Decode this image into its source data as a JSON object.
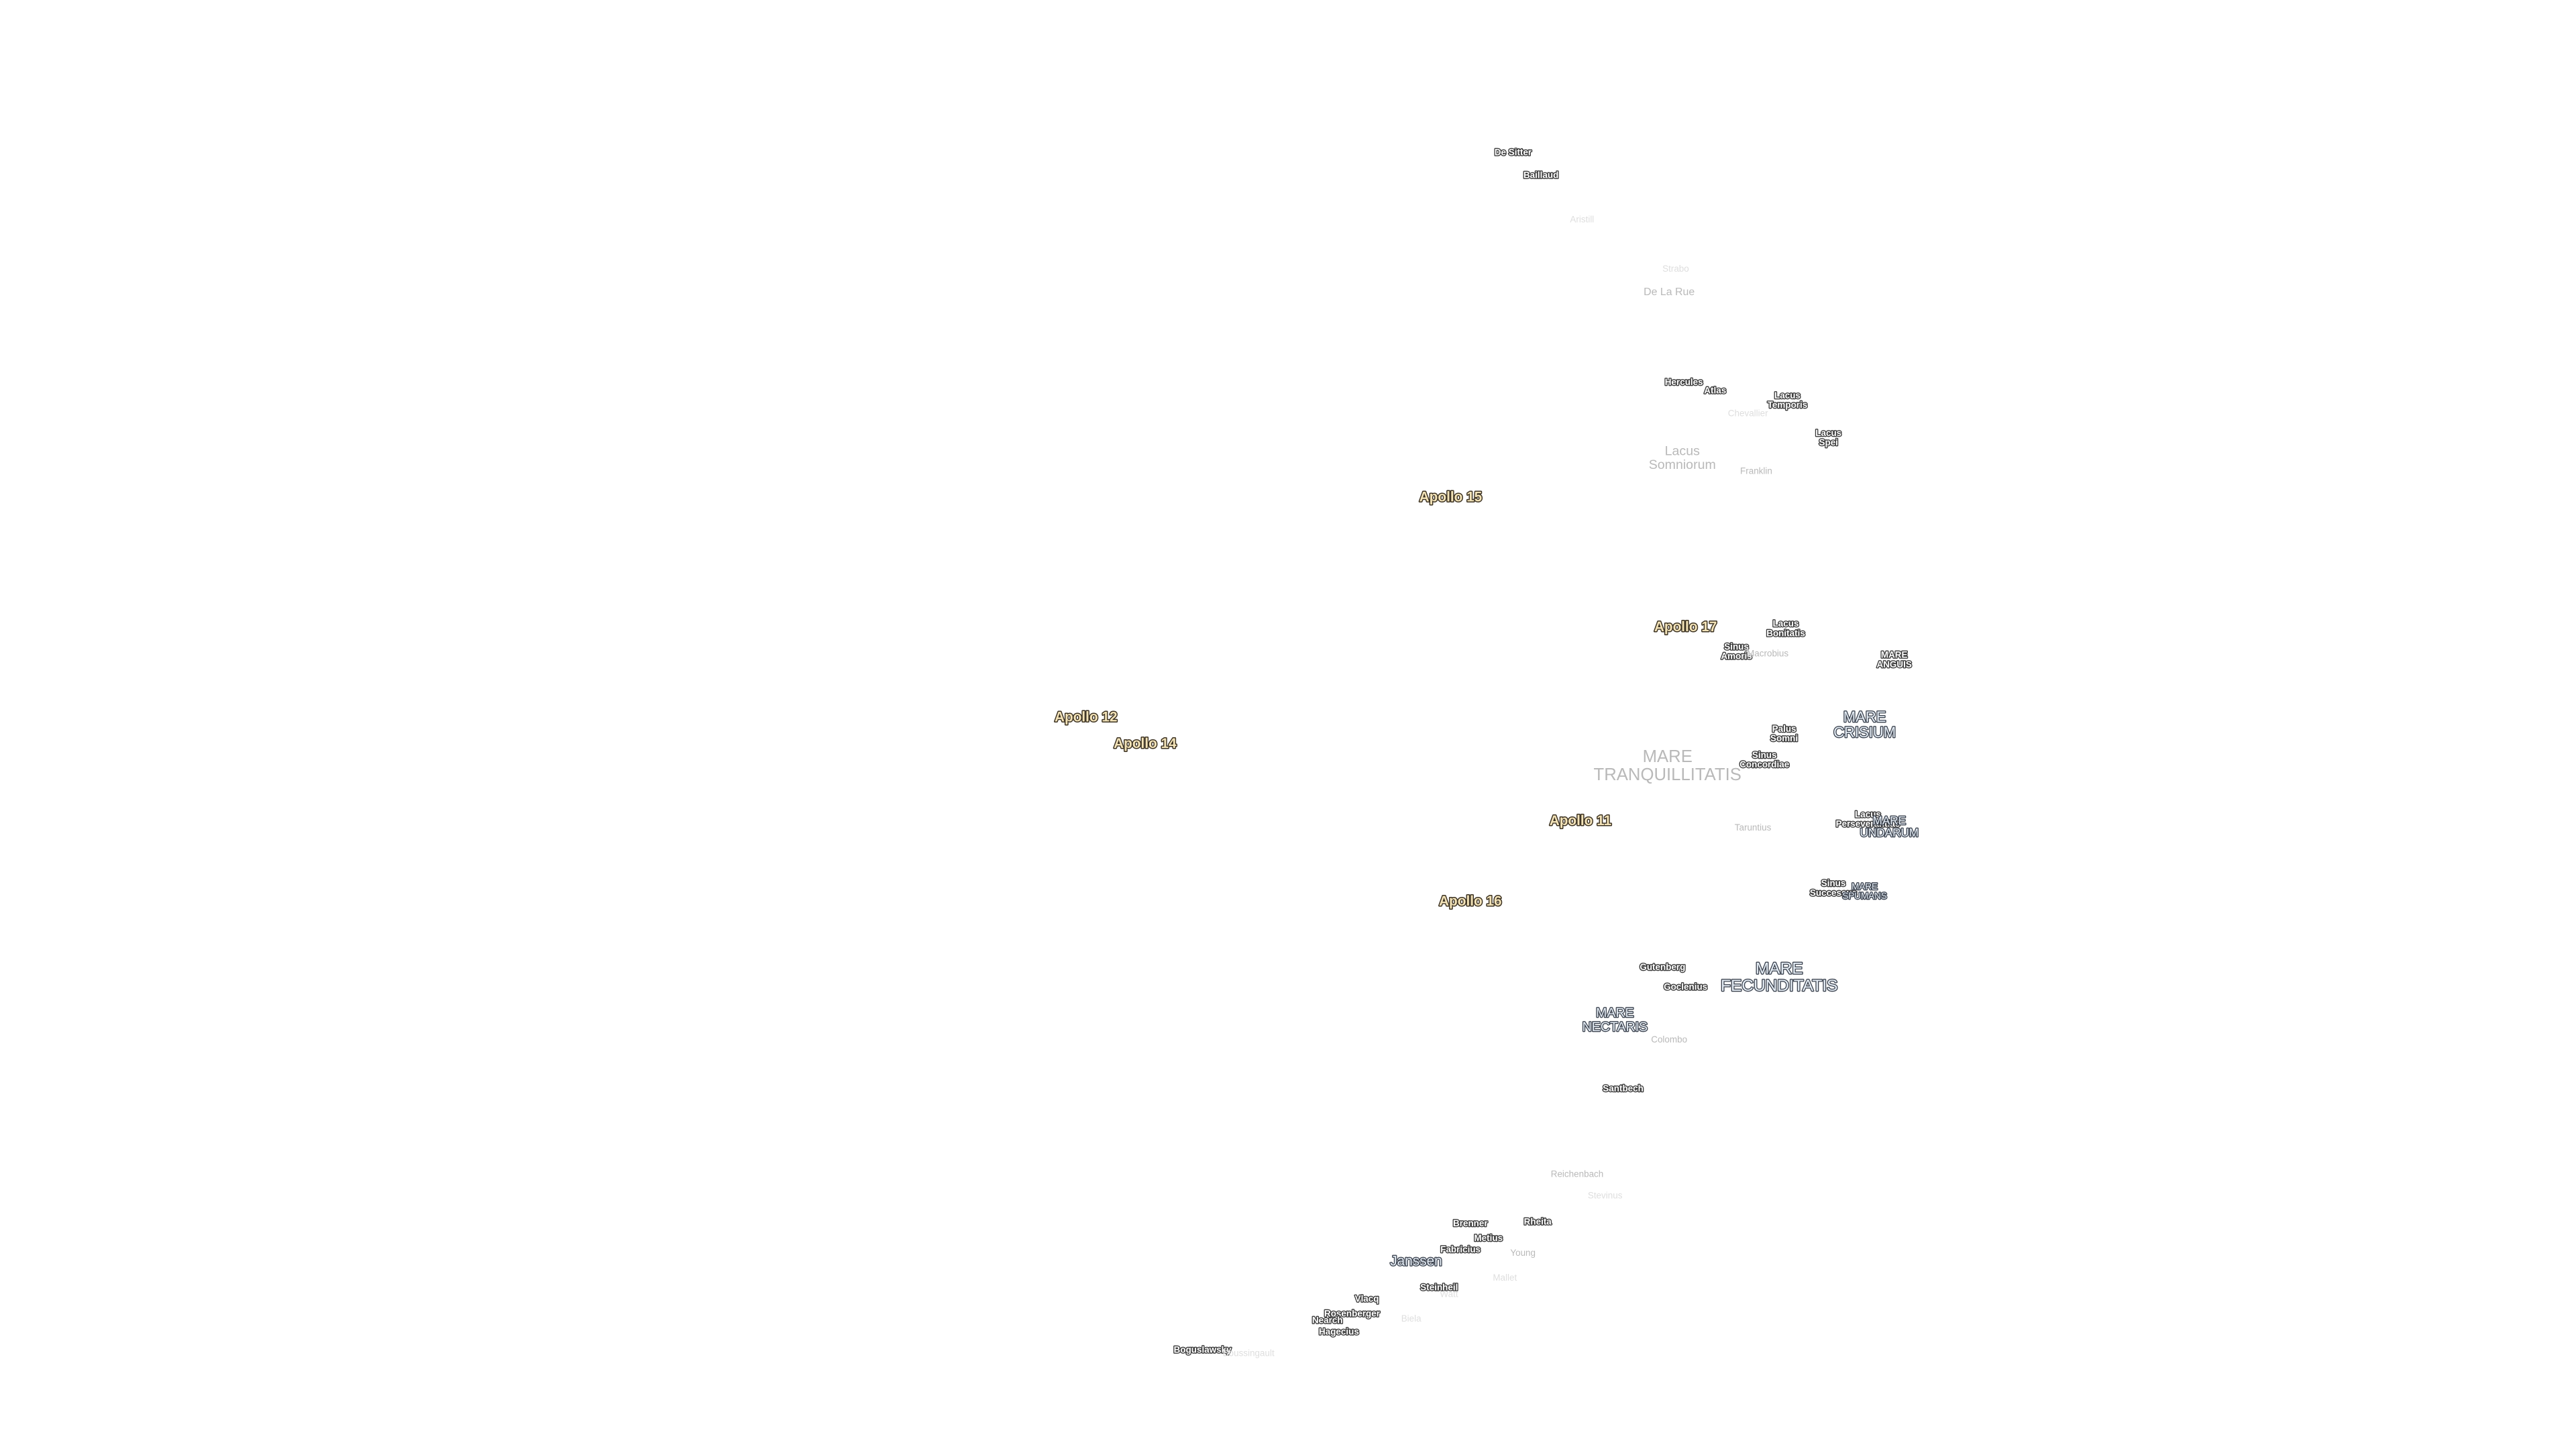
{
  "labels": [
    {
      "lines": [
        "De Sitter"
      ]
    },
    {
      "lines": [
        "Baillaud"
      ]
    },
    {
      "lines": [
        "Aristill"
      ]
    },
    {
      "lines": [
        "Strabo"
      ]
    },
    {
      "lines": [
        "De La Rue"
      ]
    },
    {
      "lines": [
        "Hercules"
      ]
    },
    {
      "lines": [
        "Atlas"
      ]
    },
    {
      "lines": [
        "Chevallier"
      ]
    },
    {
      "lines": [
        "Lacus",
        "Temporis"
      ]
    },
    {
      "lines": [
        "Lacus",
        "Spei"
      ]
    },
    {
      "lines": [
        "Lacus",
        "Somniorum"
      ]
    },
    {
      "lines": [
        "Franklin"
      ]
    },
    {
      "lines": [
        "Apollo 15"
      ]
    },
    {
      "lines": [
        "Apollo 17"
      ]
    },
    {
      "lines": [
        "Lacus",
        "Bonitatis"
      ]
    },
    {
      "lines": [
        "Sinus",
        "Amoris"
      ]
    },
    {
      "lines": [
        "Macrobius"
      ]
    },
    {
      "lines": [
        "MARE",
        "ANGUIS"
      ]
    },
    {
      "lines": [
        "Apollo 12"
      ]
    },
    {
      "lines": [
        "Apollo 14"
      ]
    },
    {
      "lines": [
        "MARE",
        "CRISIUM"
      ]
    },
    {
      "lines": [
        "Palus",
        "Somni"
      ]
    },
    {
      "lines": [
        "MARE",
        "TRANQUILLITATIS"
      ]
    },
    {
      "lines": [
        "Sinus",
        "Concordiae"
      ]
    },
    {
      "lines": [
        "Apollo 11"
      ]
    },
    {
      "lines": [
        "Taruntius"
      ]
    },
    {
      "lines": [
        "Lacus",
        "Perseverantiae"
      ]
    },
    {
      "lines": [
        "MARE",
        "UNDARUM"
      ]
    },
    {
      "lines": [
        "Sinus",
        "Successus"
      ]
    },
    {
      "lines": [
        "MARE",
        "SPUMANS"
      ]
    },
    {
      "lines": [
        "Apollo 16"
      ]
    },
    {
      "lines": [
        "Gutenberg"
      ]
    },
    {
      "lines": [
        "MARE",
        "FECUNDITATIS"
      ]
    },
    {
      "lines": [
        "Goclenius"
      ]
    },
    {
      "lines": [
        "MARE",
        "NECTARIS"
      ]
    },
    {
      "lines": [
        "Colombo"
      ]
    },
    {
      "lines": [
        "Santbech"
      ]
    },
    {
      "lines": [
        "Reichenbach"
      ]
    },
    {
      "lines": [
        "Stevinus"
      ]
    },
    {
      "lines": [
        "Brenner"
      ]
    },
    {
      "lines": [
        "Rheita"
      ]
    },
    {
      "lines": [
        "Metius"
      ]
    },
    {
      "lines": [
        "Fabricius"
      ]
    },
    {
      "lines": [
        "Young"
      ]
    },
    {
      "lines": [
        "Janssen"
      ]
    },
    {
      "lines": [
        "Mallet"
      ]
    },
    {
      "lines": [
        "Steinheil"
      ]
    },
    {
      "lines": [
        "Watt"
      ]
    },
    {
      "lines": [
        "Vlacq"
      ]
    },
    {
      "lines": [
        "Rosenberger"
      ]
    },
    {
      "lines": [
        "Nearch"
      ]
    },
    {
      "lines": [
        "Biela"
      ]
    },
    {
      "lines": [
        "Hagecius"
      ]
    },
    {
      "lines": [
        "Boguslawsky"
      ]
    },
    {
      "lines": [
        "Boussingault"
      ]
    }
  ]
}
